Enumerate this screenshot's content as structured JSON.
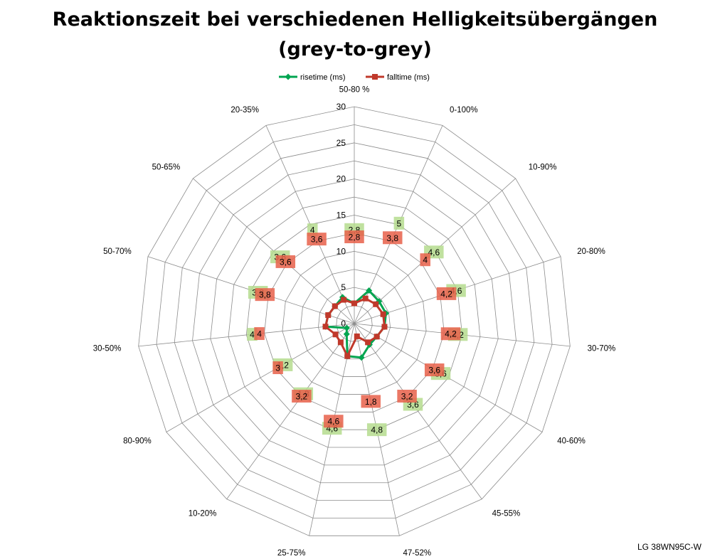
{
  "title_line1": "Reaktionszeit bei verschiedenen Helligkeitsübergängen",
  "title_line2": "(grey-to-grey)",
  "footer": "LG 38WN95C-W",
  "chart_data": {
    "type": "radar",
    "categories": [
      "50-80 %",
      "0-100%",
      "10-90%",
      "20-80%",
      "30-70%",
      "40-60%",
      "45-55%",
      "47-52%",
      "25-75%",
      "10-20%",
      "80-90%",
      "30-50%",
      "50-70%",
      "50-65%",
      "20-35%"
    ],
    "rlim": [
      0,
      30
    ],
    "rticks": [
      0,
      5,
      10,
      15,
      20,
      25,
      30
    ],
    "legend_position": "top",
    "series": [
      {
        "name": "risetime (ms)",
        "color": "#00a550",
        "marker": "diamond",
        "values": [
          2.8,
          5,
          4.6,
          4.6,
          4.2,
          3.6,
          3.6,
          4.8,
          4.6,
          1.8,
          1.2,
          4,
          3.8,
          3.6,
          4
        ],
        "labels": [
          "2,8",
          "5",
          "4,6",
          "4,6",
          "4,2",
          "3,6",
          "3,6",
          "4,8",
          "4,6",
          "1,8",
          "1,2",
          "4",
          "3,8",
          "3,6",
          "4"
        ],
        "label_bg": "#b5dc8e"
      },
      {
        "name": "falltime (ms)",
        "color": "#c0392b",
        "marker": "square",
        "values": [
          2.8,
          3.8,
          4,
          4.2,
          4.2,
          3.6,
          3.2,
          1.8,
          4.6,
          3.2,
          3,
          4,
          3.8,
          3.6,
          3.6
        ],
        "labels": [
          "2,8",
          "3,8",
          "4",
          "4,2",
          "4,2",
          "3,6",
          "3,2",
          "1,8",
          "4,6",
          "3,2",
          "3",
          "4",
          "3,8",
          "3,6",
          "3,6"
        ],
        "label_bg": "#e8604a"
      }
    ]
  }
}
